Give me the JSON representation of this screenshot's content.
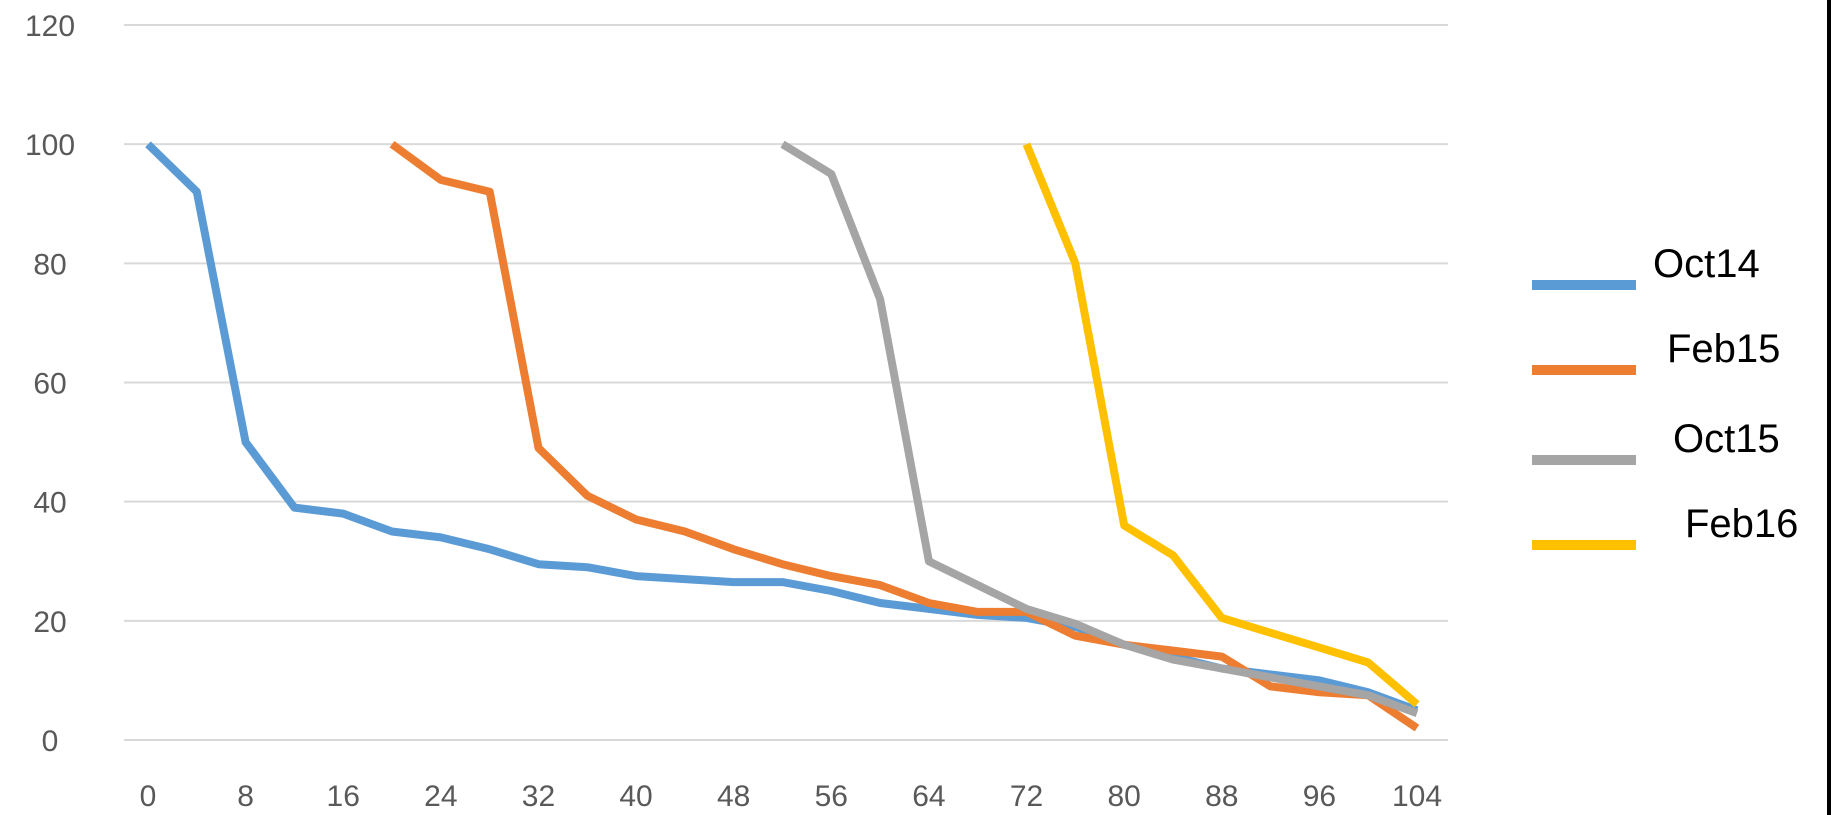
{
  "chart_data": {
    "type": "line",
    "title": "",
    "xlabel": "",
    "ylabel": "",
    "xlim": [
      0,
      104
    ],
    "ylim": [
      0,
      120
    ],
    "x_ticks": [
      0,
      8,
      16,
      24,
      32,
      40,
      48,
      56,
      64,
      72,
      80,
      88,
      96,
      104
    ],
    "y_ticks": [
      0,
      20,
      40,
      60,
      80,
      100,
      120
    ],
    "grid": "horizontal",
    "legend_position": "right",
    "series": [
      {
        "name": "Oct14",
        "color": "#5B9BD5",
        "points": [
          [
            0,
            100
          ],
          [
            4,
            92
          ],
          [
            8,
            50
          ],
          [
            12,
            39
          ],
          [
            16,
            38
          ],
          [
            20,
            35
          ],
          [
            24,
            34
          ],
          [
            28,
            32
          ],
          [
            32,
            29.5
          ],
          [
            36,
            29
          ],
          [
            40,
            27.5
          ],
          [
            44,
            27
          ],
          [
            48,
            26.5
          ],
          [
            52,
            26.5
          ],
          [
            56,
            25
          ],
          [
            60,
            23
          ],
          [
            64,
            22
          ],
          [
            68,
            21
          ],
          [
            72,
            20.5
          ],
          [
            76,
            19
          ],
          [
            80,
            16
          ],
          [
            84,
            14
          ],
          [
            88,
            12
          ],
          [
            92,
            11
          ],
          [
            96,
            10
          ],
          [
            100,
            8
          ],
          [
            104,
            5
          ]
        ]
      },
      {
        "name": "Feb15",
        "color": "#ED7D31",
        "points": [
          [
            20,
            100
          ],
          [
            24,
            94
          ],
          [
            28,
            92
          ],
          [
            32,
            49
          ],
          [
            36,
            41
          ],
          [
            40,
            37
          ],
          [
            44,
            35
          ],
          [
            48,
            32
          ],
          [
            52,
            29.5
          ],
          [
            56,
            27.5
          ],
          [
            60,
            26
          ],
          [
            64,
            23
          ],
          [
            68,
            21.5
          ],
          [
            72,
            21.5
          ],
          [
            76,
            17.5
          ],
          [
            80,
            16
          ],
          [
            84,
            15
          ],
          [
            88,
            14
          ],
          [
            92,
            9
          ],
          [
            96,
            8
          ],
          [
            100,
            7.5
          ],
          [
            104,
            2
          ]
        ]
      },
      {
        "name": "Oct15",
        "color": "#A5A5A5",
        "points": [
          [
            52,
            100
          ],
          [
            56,
            95
          ],
          [
            60,
            74
          ],
          [
            64,
            30
          ],
          [
            68,
            26
          ],
          [
            72,
            22
          ],
          [
            76,
            19.5
          ],
          [
            80,
            16
          ],
          [
            84,
            13.5
          ],
          [
            88,
            12
          ],
          [
            92,
            10.5
          ],
          [
            96,
            9
          ],
          [
            100,
            7.5
          ],
          [
            104,
            4.5
          ]
        ]
      },
      {
        "name": "Feb16",
        "color": "#FFC000",
        "points": [
          [
            72,
            100
          ],
          [
            76,
            80
          ],
          [
            80,
            36
          ],
          [
            84,
            31
          ],
          [
            88,
            20.5
          ],
          [
            92,
            18
          ],
          [
            96,
            15.5
          ],
          [
            100,
            13
          ],
          [
            104,
            6
          ]
        ]
      }
    ]
  }
}
